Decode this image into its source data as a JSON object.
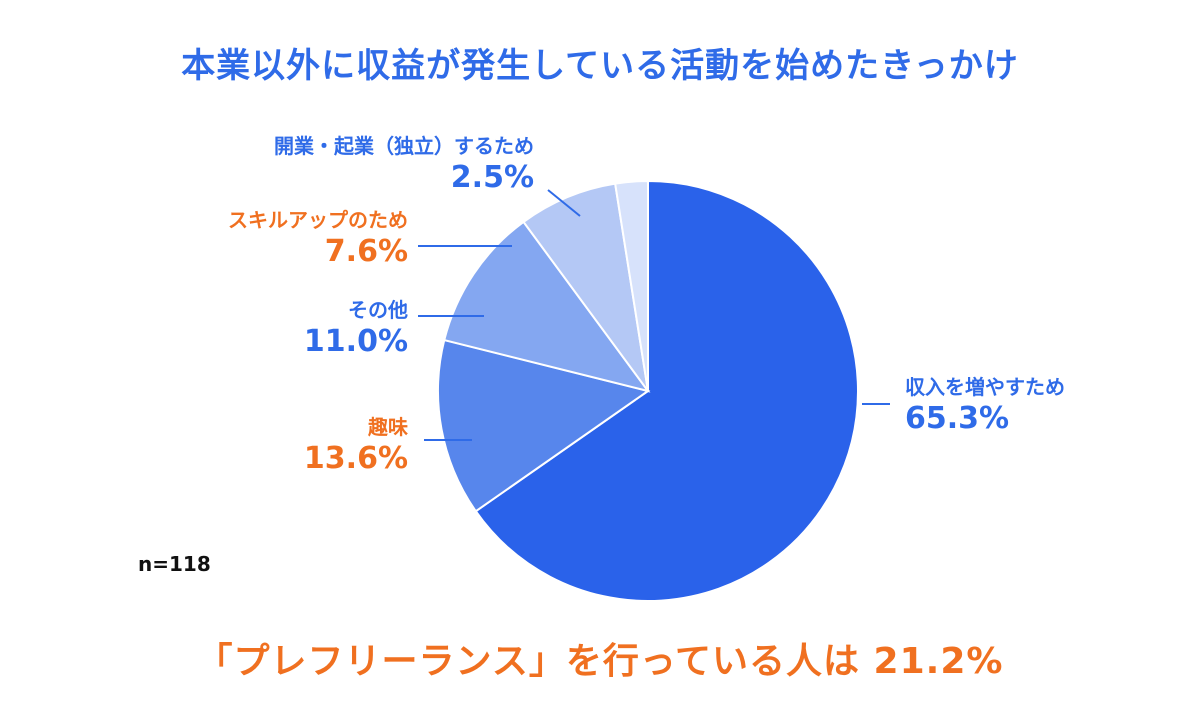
{
  "chart_data": {
    "type": "pie",
    "title": "本業以外に収益が発生している活動を始めたきっかけ",
    "n_label": "n=118",
    "footer": "「プレフリーランス」を行っている人は 21.2%",
    "slices": [
      {
        "label": "収入を増やすため",
        "value": 65.3,
        "value_label": "65.3%",
        "color": "#2a62ea",
        "label_color": "#2f6be8"
      },
      {
        "label": "趣味",
        "value": 13.6,
        "value_label": "13.6%",
        "color": "#5786ec",
        "label_color": "#f07020"
      },
      {
        "label": "その他",
        "value": 11.0,
        "value_label": "11.0%",
        "color": "#84a7f1",
        "label_color": "#2f6be8"
      },
      {
        "label": "スキルアップのため",
        "value": 7.6,
        "value_label": "7.6%",
        "color": "#b4c8f5",
        "label_color": "#f07020"
      },
      {
        "label": "開業・起業（独立）するため",
        "value": 2.5,
        "value_label": "2.5%",
        "color": "#d7e2fb",
        "label_color": "#2f6be8"
      }
    ],
    "slice_order_note": "clockwise from 12 o'clock"
  }
}
